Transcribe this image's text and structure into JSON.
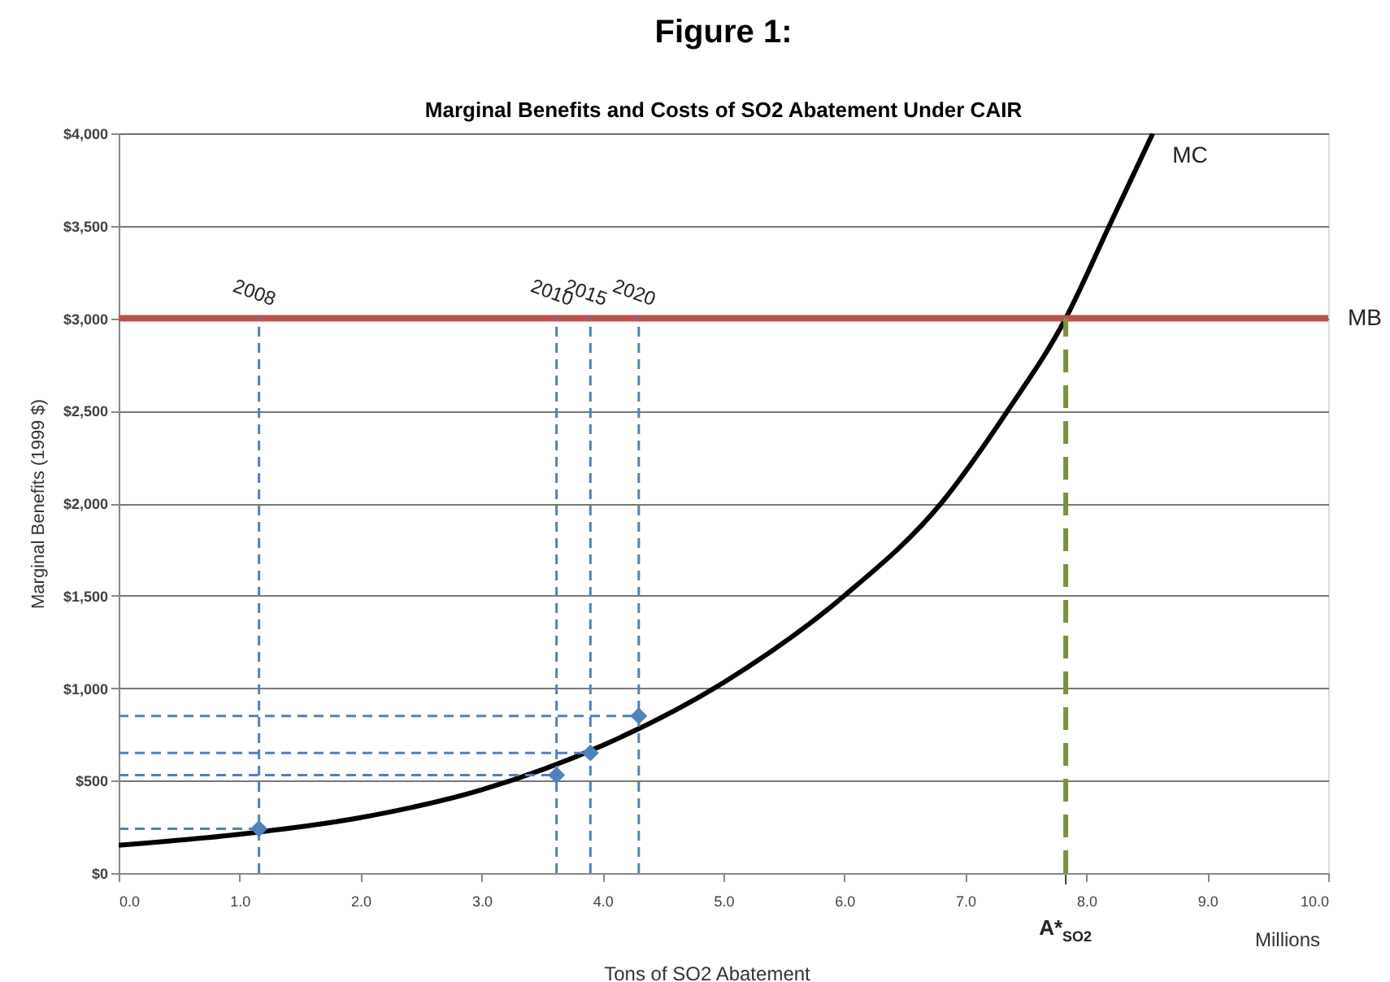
{
  "chart_data": {
    "type": "line",
    "title": "Figure 1:",
    "subtitle": "Marginal Benefits and Costs of SO2 Abatement Under CAIR",
    "xlabel": "Tons of SO2 Abatement",
    "ylabel": "Marginal Benefits (1999 $)",
    "series": [
      {
        "name": "MC",
        "color": "#000000",
        "x": [
          0,
          1,
          2,
          3,
          4,
          5,
          6,
          6.8,
          7.35,
          7.83,
          8.19,
          8.55
        ],
        "values": [
          150,
          210,
          300,
          450,
          690,
          1030,
          1500,
          2000,
          2500,
          3000,
          3500,
          4000
        ]
      },
      {
        "type": "scatter",
        "color": "#4f81bd",
        "marker": "diamond",
        "x": [
          1.16,
          3.62,
          3.9,
          4.3
        ],
        "values": [
          240,
          530,
          650,
          850
        ]
      }
    ],
    "ref_lines": [
      {
        "axis": "y",
        "value": 3000,
        "label": "MB",
        "color": "#c0504d",
        "line_style": "solid"
      },
      {
        "axis": "x",
        "value": 1.16,
        "color": "#4f81bd",
        "line_style": "dashed"
      },
      {
        "axis": "x",
        "value": 3.62,
        "color": "#4f81bd",
        "line_style": "dashed"
      },
      {
        "axis": "x",
        "value": 3.9,
        "color": "#4f81bd",
        "line_style": "dashed"
      },
      {
        "axis": "x",
        "value": 4.3,
        "color": "#4f81bd",
        "line_style": "dashed"
      },
      {
        "axis": "y",
        "value": 240,
        "color": "#4f81bd",
        "line_style": "dashed"
      },
      {
        "axis": "y",
        "value": 530,
        "color": "#4f81bd",
        "line_style": "dashed"
      },
      {
        "axis": "y",
        "value": 650,
        "color": "#4f81bd",
        "line_style": "dashed"
      },
      {
        "axis": "y",
        "value": 850,
        "color": "#4f81bd",
        "line_style": "dashed"
      },
      {
        "axis": "x",
        "value": 7.83,
        "label": "A*$_{SO2}$",
        "color": "#77933c",
        "line_style": "dashed"
      }
    ],
    "annotations": [
      {
        "text": "2008",
        "x": 1.16,
        "y": 3000
      },
      {
        "text": "2010",
        "x": 3.62,
        "y": 3000
      },
      {
        "text": "2015",
        "x": 3.9,
        "y": 3000
      },
      {
        "text": "2020",
        "x": 4.3,
        "y": 3000
      },
      "Millions"
    ],
    "xlim": [
      0,
      10
    ],
    "ylim": [
      0,
      4000
    ],
    "xticks": [
      {
        "value": 0,
        "label": "0.0"
      },
      {
        "value": 1,
        "label": "1.0"
      },
      {
        "value": 2,
        "label": "2.0"
      },
      {
        "value": 3,
        "label": "3.0"
      },
      {
        "value": 4,
        "label": "4.0"
      },
      {
        "value": 5,
        "label": "5.0"
      },
      {
        "value": 6,
        "label": "6.0"
      },
      {
        "value": 7,
        "label": "7.0"
      },
      {
        "value": 8,
        "label": "8.0"
      },
      {
        "value": 9,
        "label": "9.0"
      },
      {
        "value": 10,
        "label": "10.0"
      }
    ],
    "yticks": [
      {
        "value": 0,
        "label": "$0"
      },
      {
        "value": 500,
        "label": "$500"
      },
      {
        "value": 1000,
        "label": "$1,000"
      },
      {
        "value": 1500,
        "label": "$1,500"
      },
      {
        "value": 2000,
        "label": "$2,000"
      },
      {
        "value": 2500,
        "label": "$2,500"
      },
      {
        "value": 3000,
        "label": "$3,000"
      },
      {
        "value": 3500,
        "label": "$3,500"
      },
      {
        "value": 4000,
        "label": "$4,000"
      }
    ],
    "grid": "y"
  }
}
